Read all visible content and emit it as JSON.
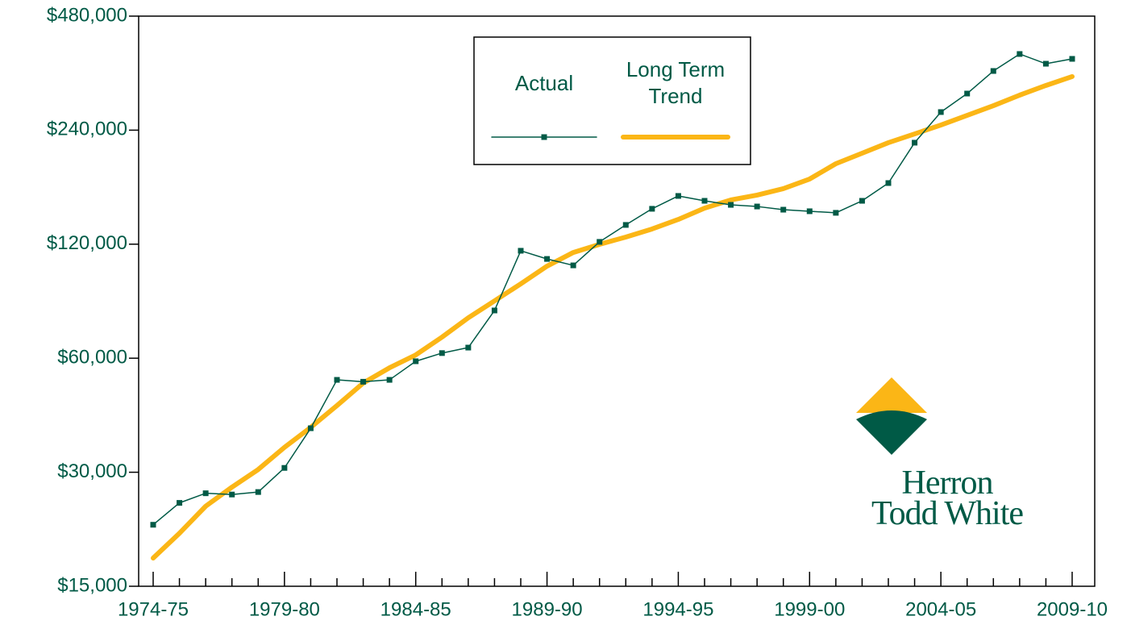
{
  "chart_data": {
    "type": "line",
    "categories": [
      "1974-75",
      null,
      null,
      null,
      null,
      "1979-80",
      null,
      null,
      null,
      null,
      "1984-85",
      null,
      null,
      null,
      null,
      "1989-90",
      null,
      null,
      null,
      null,
      "1994-95",
      null,
      null,
      null,
      null,
      "1999-00",
      null,
      null,
      null,
      null,
      "2004-05",
      null,
      null,
      null,
      null,
      "2009-10"
    ],
    "series": [
      {
        "name": "Actual",
        "color": "#005a46",
        "markers": true,
        "values": [
          21800,
          24900,
          26400,
          26200,
          26600,
          30800,
          39200,
          52600,
          52000,
          52600,
          58900,
          61900,
          64000,
          80200,
          115300,
          109700,
          105500,
          121700,
          134900,
          148800,
          160900,
          156200,
          152400,
          150900,
          148000,
          146600,
          145200,
          156200,
          174000,
          222400,
          267900,
          299800,
          343900,
          381300,
          359400,
          370200
        ]
      },
      {
        "name": "Long Term Trend",
        "color": "#fbb616",
        "markers": false,
        "values": [
          17800,
          20700,
          24400,
          27400,
          30500,
          34900,
          39400,
          45000,
          51600,
          56600,
          61200,
          68200,
          76700,
          85000,
          94300,
          105000,
          114100,
          119900,
          125300,
          131600,
          139500,
          149400,
          157000,
          161700,
          168200,
          178300,
          195700,
          208600,
          222400,
          234600,
          247600,
          262600,
          278500,
          296900,
          314900,
          332400
        ]
      }
    ],
    "ylim": [
      15000,
      480000
    ],
    "yscale": "log",
    "yticks": [
      {
        "value": 15000,
        "label": "$15,000"
      },
      {
        "value": 30000,
        "label": "$30,000"
      },
      {
        "value": 60000,
        "label": "$60,000"
      },
      {
        "value": 120000,
        "label": "$120,000"
      },
      {
        "value": 240000,
        "label": "$240,000"
      },
      {
        "value": 480000,
        "label": "$480,000"
      }
    ],
    "legend": "top",
    "logo_text": [
      "Herron",
      "Todd White"
    ]
  }
}
